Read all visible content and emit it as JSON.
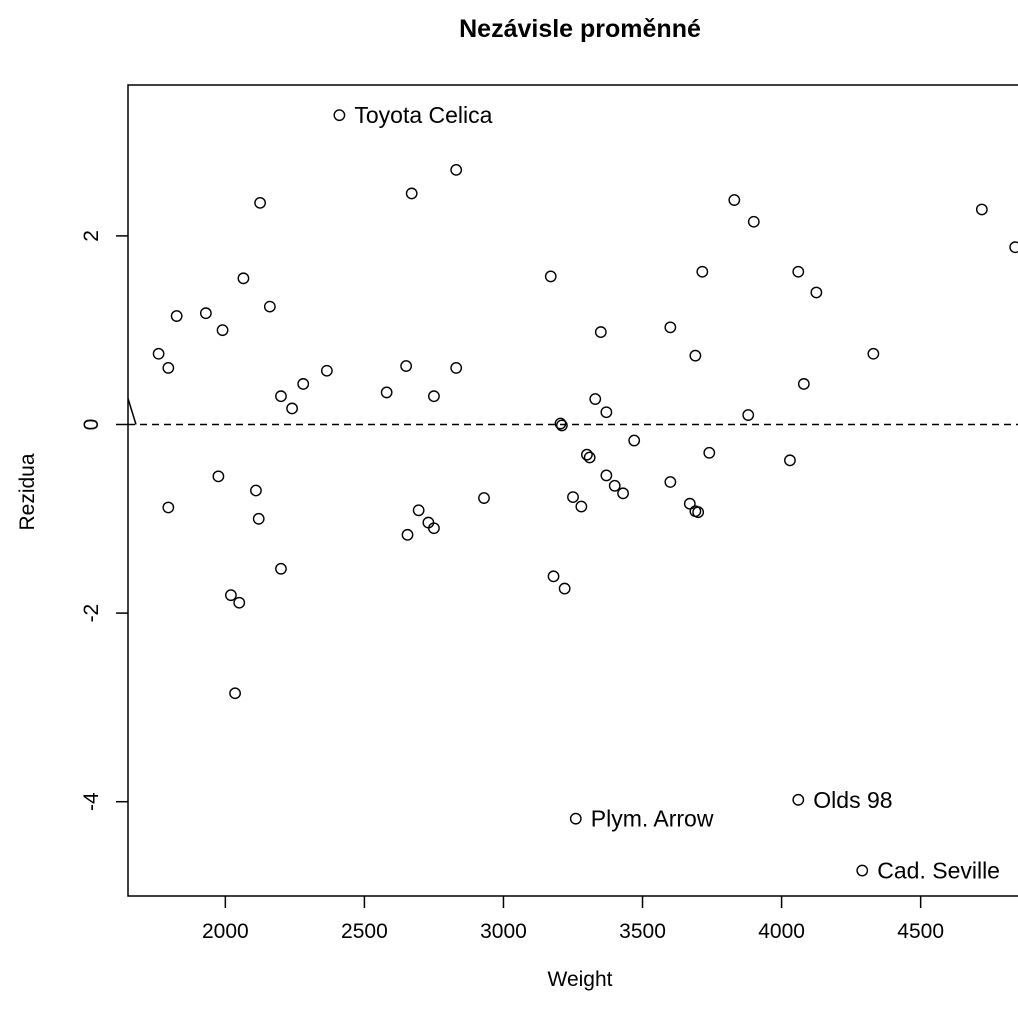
{
  "chart_data": {
    "type": "scatter",
    "title": "Nezávisle proměnné",
    "xlabel": "Weight",
    "ylabel": "Rezidua",
    "xlim": [
      1650,
      4850
    ],
    "ylim": [
      -5,
      3.6
    ],
    "x_ticks": [
      2000,
      2500,
      3000,
      3500,
      4000,
      4500
    ],
    "y_ticks": [
      -4,
      -2,
      0,
      2
    ],
    "grid": false,
    "reference_line": {
      "y": 0,
      "style": "dashed"
    },
    "points": [
      {
        "x": 1760,
        "y": 0.75
      },
      {
        "x": 1795,
        "y": 0.6
      },
      {
        "x": 1825,
        "y": 1.15
      },
      {
        "x": 1930,
        "y": 1.18
      },
      {
        "x": 1990,
        "y": 1.0
      },
      {
        "x": 2065,
        "y": 1.55
      },
      {
        "x": 2125,
        "y": 2.35
      },
      {
        "x": 2160,
        "y": 1.25
      },
      {
        "x": 2200,
        "y": 0.3
      },
      {
        "x": 2240,
        "y": 0.17
      },
      {
        "x": 2280,
        "y": 0.43
      },
      {
        "x": 2365,
        "y": 0.57
      },
      {
        "x": 2410,
        "y": 3.28
      },
      {
        "x": 2580,
        "y": 0.34
      },
      {
        "x": 2650,
        "y": 0.62
      },
      {
        "x": 2670,
        "y": 2.45
      },
      {
        "x": 2750,
        "y": 0.3
      },
      {
        "x": 2830,
        "y": 2.7
      },
      {
        "x": 2830,
        "y": 0.6
      },
      {
        "x": 3170,
        "y": 1.57
      },
      {
        "x": 3205,
        "y": 0.01
      },
      {
        "x": 3210,
        "y": -0.01
      },
      {
        "x": 3330,
        "y": 0.27
      },
      {
        "x": 3350,
        "y": 0.98
      },
      {
        "x": 3370,
        "y": 0.13
      },
      {
        "x": 3600,
        "y": 1.03
      },
      {
        "x": 3690,
        "y": 0.73
      },
      {
        "x": 3715,
        "y": 1.62
      },
      {
        "x": 3830,
        "y": 2.38
      },
      {
        "x": 3880,
        "y": 0.1
      },
      {
        "x": 3900,
        "y": 2.15
      },
      {
        "x": 4060,
        "y": 1.62
      },
      {
        "x": 4080,
        "y": 0.43
      },
      {
        "x": 4125,
        "y": 1.4
      },
      {
        "x": 4330,
        "y": 0.75
      },
      {
        "x": 4720,
        "y": 2.28
      },
      {
        "x": 4840,
        "y": 1.88
      },
      {
        "x": 1795,
        "y": -0.88
      },
      {
        "x": 1975,
        "y": -0.55
      },
      {
        "x": 2020,
        "y": -1.81
      },
      {
        "x": 2035,
        "y": -2.85
      },
      {
        "x": 2050,
        "y": -1.89
      },
      {
        "x": 2110,
        "y": -0.7
      },
      {
        "x": 2120,
        "y": -1.0
      },
      {
        "x": 2200,
        "y": -1.53
      },
      {
        "x": 2655,
        "y": -1.17
      },
      {
        "x": 2695,
        "y": -0.91
      },
      {
        "x": 2730,
        "y": -1.04
      },
      {
        "x": 2750,
        "y": -1.1
      },
      {
        "x": 2930,
        "y": -0.78
      },
      {
        "x": 3180,
        "y": -1.61
      },
      {
        "x": 3220,
        "y": -1.74
      },
      {
        "x": 3250,
        "y": -0.77
      },
      {
        "x": 3280,
        "y": -0.87
      },
      {
        "x": 3300,
        "y": -0.32
      },
      {
        "x": 3310,
        "y": -0.35
      },
      {
        "x": 3370,
        "y": -0.54
      },
      {
        "x": 3400,
        "y": -0.65
      },
      {
        "x": 3430,
        "y": -0.73
      },
      {
        "x": 3470,
        "y": -0.17
      },
      {
        "x": 3600,
        "y": -0.61
      },
      {
        "x": 3670,
        "y": -0.84
      },
      {
        "x": 3690,
        "y": -0.92
      },
      {
        "x": 3700,
        "y": -0.93
      },
      {
        "x": 3740,
        "y": -0.3
      },
      {
        "x": 4030,
        "y": -0.38
      },
      {
        "x": 3260,
        "y": -4.18
      },
      {
        "x": 4060,
        "y": -3.98
      },
      {
        "x": 4290,
        "y": -4.73
      }
    ],
    "annotations": [
      {
        "text": "Toyota Celica",
        "x": 2410,
        "y": 3.28
      },
      {
        "text": "Plym. Arrow",
        "x": 3260,
        "y": -4.18
      },
      {
        "text": "Olds 98",
        "x": 4060,
        "y": -3.98
      },
      {
        "text": "Cad. Seville",
        "x": 4290,
        "y": -4.73
      }
    ]
  }
}
